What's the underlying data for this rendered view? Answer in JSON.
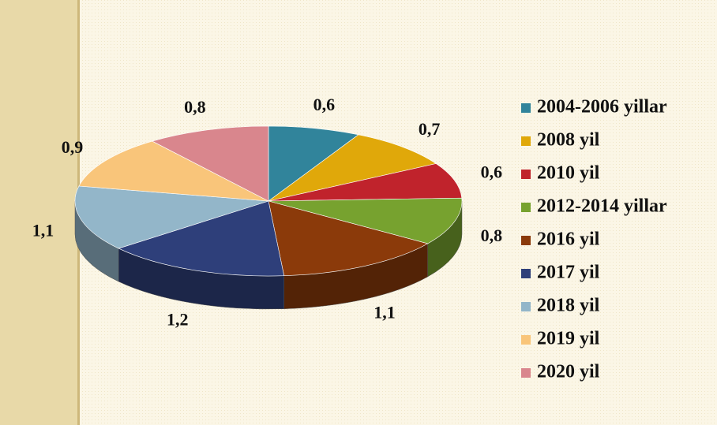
{
  "chart_data": {
    "type": "pie",
    "categories": [
      "2004-2006 yillar",
      "2008 yil",
      "2010 yil",
      "2012-2014 yillar",
      "2016 yil",
      "2017 yil",
      "2018 yil",
      "2019 yil",
      "2020 yil"
    ],
    "values": [
      0.6,
      0.7,
      0.6,
      0.8,
      1.1,
      1.2,
      1.1,
      0.9,
      0.8
    ],
    "value_labels": [
      "0,6",
      "0,7",
      "0,6",
      "0,8",
      "1,1",
      "1,2",
      "1,1",
      "0,9",
      "0,8"
    ],
    "colors": [
      "#31849b",
      "#e0a80a",
      "#c0232c",
      "#77a22f",
      "#8b3a0a",
      "#2e3f7a",
      "#93b6c9",
      "#f9c57a",
      "#d9868d"
    ],
    "legend": "right"
  }
}
